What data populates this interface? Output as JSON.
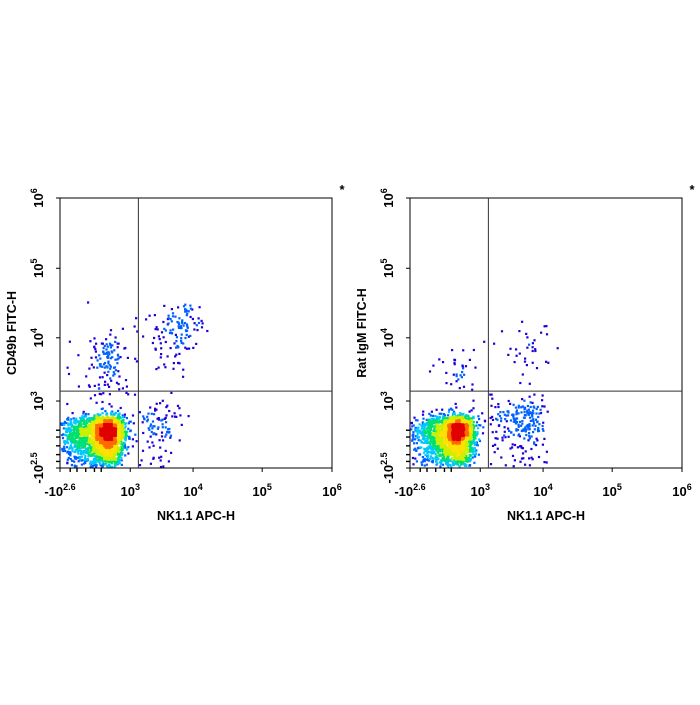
{
  "figure": {
    "watermark": ""
  },
  "colors": {
    "density_scale": [
      "#1f00d8",
      "#0060ff",
      "#00c8ff",
      "#00e070",
      "#c8f000",
      "#ffe000",
      "#ff6a00",
      "#e00000"
    ],
    "frame": "#000000",
    "gate_line": "#333333"
  },
  "chart_data": [
    {
      "type": "scatter",
      "subtype": "flow-cytometry-density-dot-plot",
      "title": "",
      "annotation": "*",
      "xlabel": "NK1.1 APC-H",
      "ylabel": "CD49b FITC-H",
      "x_scale": "biexponential",
      "y_scale": "biexponential",
      "x_ticks": [
        {
          "base": "-10",
          "exp": "2.6"
        },
        {
          "base": "10",
          "exp": "3"
        },
        {
          "base": "10",
          "exp": "4"
        },
        {
          "base": "10",
          "exp": "5"
        },
        {
          "base": "10",
          "exp": "6"
        }
      ],
      "y_ticks": [
        {
          "base": "-10",
          "exp": "2.5"
        },
        {
          "base": "10",
          "exp": "3"
        },
        {
          "base": "10",
          "exp": "4"
        },
        {
          "base": "10",
          "exp": "5"
        },
        {
          "base": "10",
          "exp": "6"
        }
      ],
      "xlim": [
        -400,
        1000000
      ],
      "ylim": [
        -320,
        1000000
      ],
      "quadrant_gate": {
        "x": 1400,
        "y": 1500
      },
      "populations": [
        {
          "name": "",
          "center": [
            250,
            120
          ],
          "spread": [
            240,
            180
          ],
          "count": 2400
        },
        {
          "name": "",
          "center": [
            5500,
            11000
          ],
          "spread": [
            3500,
            9000
          ],
          "count": 170
        },
        {
          "name": "",
          "center": [
            300,
            3500
          ],
          "spread": [
            250,
            3000
          ],
          "count": 150
        },
        {
          "name": "",
          "center": [
            2500,
            250
          ],
          "spread": [
            1800,
            250
          ],
          "count": 120
        }
      ],
      "grid": false,
      "legend": "none"
    },
    {
      "type": "scatter",
      "subtype": "flow-cytometry-density-dot-plot",
      "title": "",
      "annotation": "*",
      "xlabel": "NK1.1 APC-H",
      "ylabel": "Rat IgM FITC-H",
      "x_scale": "biexponential",
      "y_scale": "biexponential",
      "x_ticks": [
        {
          "base": "-10",
          "exp": "2.6"
        },
        {
          "base": "10",
          "exp": "3"
        },
        {
          "base": "10",
          "exp": "4"
        },
        {
          "base": "10",
          "exp": "5"
        },
        {
          "base": "10",
          "exp": "6"
        }
      ],
      "y_ticks": [
        {
          "base": "-10",
          "exp": "2.5"
        },
        {
          "base": "10",
          "exp": "3"
        },
        {
          "base": "10",
          "exp": "4"
        },
        {
          "base": "10",
          "exp": "5"
        },
        {
          "base": "10",
          "exp": "6"
        }
      ],
      "xlim": [
        -400,
        1000000
      ],
      "ylim": [
        -320,
        1000000
      ],
      "quadrant_gate": {
        "x": 1400,
        "y": 1500
      },
      "populations": [
        {
          "name": "",
          "center": [
            250,
            120
          ],
          "spread": [
            240,
            180
          ],
          "count": 2300
        },
        {
          "name": "",
          "center": [
            4500,
            300
          ],
          "spread": [
            2800,
            350
          ],
          "count": 260
        },
        {
          "name": "",
          "center": [
            6000,
            6500
          ],
          "spread": [
            3500,
            4500
          ],
          "count": 45
        },
        {
          "name": "",
          "center": [
            300,
            3000
          ],
          "spread": [
            250,
            2500
          ],
          "count": 40
        }
      ],
      "grid": false,
      "legend": "none"
    }
  ]
}
